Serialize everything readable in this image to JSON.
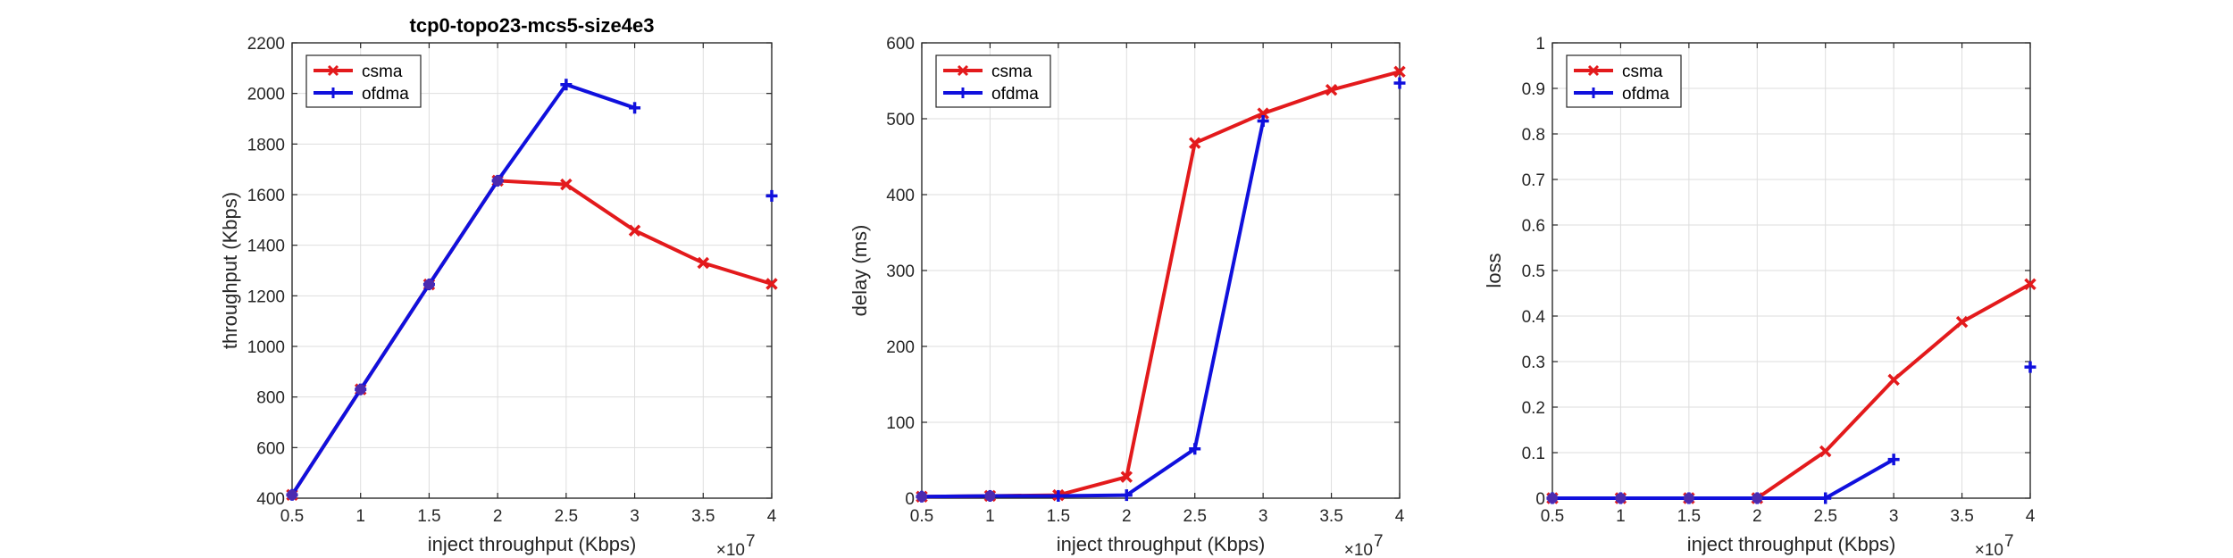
{
  "colors": {
    "csma": "#e31a1c",
    "ofdma": "#1010dd"
  },
  "chart_data": [
    {
      "type": "line",
      "title": "tcp0-topo23-mcs5-size4e3",
      "xlabel": "inject throughput (Kbps)",
      "ylabel": "throughput (Kbps)",
      "x_exponent_label": "×10",
      "x_exponent": "7",
      "xlim": [
        5000000,
        40000000
      ],
      "ylim": [
        400,
        2200
      ],
      "x_ticks": [
        5000000,
        10000000,
        15000000,
        20000000,
        25000000,
        30000000,
        35000000,
        40000000
      ],
      "x_tick_labels": [
        "0.5",
        "1",
        "1.5",
        "2",
        "2.5",
        "3",
        "3.5",
        "4"
      ],
      "y_ticks": [
        400,
        600,
        800,
        1000,
        1200,
        1400,
        1600,
        1800,
        2000,
        2200
      ],
      "y_tick_labels": [
        "400",
        "600",
        "800",
        "1000",
        "1200",
        "1400",
        "1600",
        "1800",
        "2000",
        "2200"
      ],
      "grid": true,
      "legend": "top-left",
      "series": [
        {
          "name": "csma",
          "marker": "x",
          "color": "#e31a1c",
          "x": [
            5000000,
            10000000,
            15000000,
            20000000,
            25000000,
            30000000,
            35000000,
            40000000
          ],
          "y": [
            413,
            830,
            1245,
            1655,
            1640,
            1458,
            1330,
            1247
          ]
        },
        {
          "name": "ofdma",
          "marker": "+",
          "color": "#1010dd",
          "x": [
            5000000,
            10000000,
            15000000,
            20000000,
            25000000,
            30000000,
            35000000,
            40000000
          ],
          "y": [
            413,
            830,
            1245,
            1655,
            2035,
            1943,
            null,
            1595
          ]
        }
      ]
    },
    {
      "type": "line",
      "title": "",
      "xlabel": "inject throughput (Kbps)",
      "ylabel": "delay (ms)",
      "x_exponent_label": "×10",
      "x_exponent": "7",
      "xlim": [
        5000000,
        40000000
      ],
      "ylim": [
        0,
        600
      ],
      "x_ticks": [
        5000000,
        10000000,
        15000000,
        20000000,
        25000000,
        30000000,
        35000000,
        40000000
      ],
      "x_tick_labels": [
        "0.5",
        "1",
        "1.5",
        "2",
        "2.5",
        "3",
        "3.5",
        "4"
      ],
      "y_ticks": [
        0,
        100,
        200,
        300,
        400,
        500,
        600
      ],
      "y_tick_labels": [
        "0",
        "100",
        "200",
        "300",
        "400",
        "500",
        "600"
      ],
      "grid": true,
      "legend": "top-left",
      "series": [
        {
          "name": "csma",
          "marker": "x",
          "color": "#e31a1c",
          "x": [
            5000000,
            10000000,
            15000000,
            20000000,
            25000000,
            30000000,
            35000000,
            40000000
          ],
          "y": [
            2,
            3,
            4,
            28,
            468,
            507,
            538,
            562
          ]
        },
        {
          "name": "ofdma",
          "marker": "+",
          "color": "#1010dd",
          "x": [
            5000000,
            10000000,
            15000000,
            20000000,
            25000000,
            30000000,
            35000000,
            40000000
          ],
          "y": [
            2,
            3,
            3,
            4,
            65,
            497,
            null,
            547
          ]
        }
      ]
    },
    {
      "type": "line",
      "title": "",
      "xlabel": "inject throughput (Kbps)",
      "ylabel": "loss",
      "x_exponent_label": "×10",
      "x_exponent": "7",
      "xlim": [
        5000000,
        40000000
      ],
      "ylim": [
        0,
        1
      ],
      "x_ticks": [
        5000000,
        10000000,
        15000000,
        20000000,
        25000000,
        30000000,
        35000000,
        40000000
      ],
      "x_tick_labels": [
        "0.5",
        "1",
        "1.5",
        "2",
        "2.5",
        "3",
        "3.5",
        "4"
      ],
      "y_ticks": [
        0,
        0.1,
        0.2,
        0.3,
        0.4,
        0.5,
        0.6,
        0.7,
        0.8,
        0.9,
        1
      ],
      "y_tick_labels": [
        "0",
        "0.1",
        "0.2",
        "0.3",
        "0.4",
        "0.5",
        "0.6",
        "0.7",
        "0.8",
        "0.9",
        "1"
      ],
      "grid": true,
      "legend": "top-left",
      "series": [
        {
          "name": "csma",
          "marker": "x",
          "color": "#e31a1c",
          "x": [
            5000000,
            10000000,
            15000000,
            20000000,
            25000000,
            30000000,
            35000000,
            40000000
          ],
          "y": [
            0,
            0,
            0,
            0,
            0.103,
            0.26,
            0.387,
            0.47
          ]
        },
        {
          "name": "ofdma",
          "marker": "+",
          "color": "#1010dd",
          "x": [
            5000000,
            10000000,
            15000000,
            20000000,
            25000000,
            30000000,
            35000000,
            40000000
          ],
          "y": [
            0,
            0,
            0,
            0,
            0,
            0.085,
            null,
            0.288
          ]
        }
      ]
    }
  ]
}
